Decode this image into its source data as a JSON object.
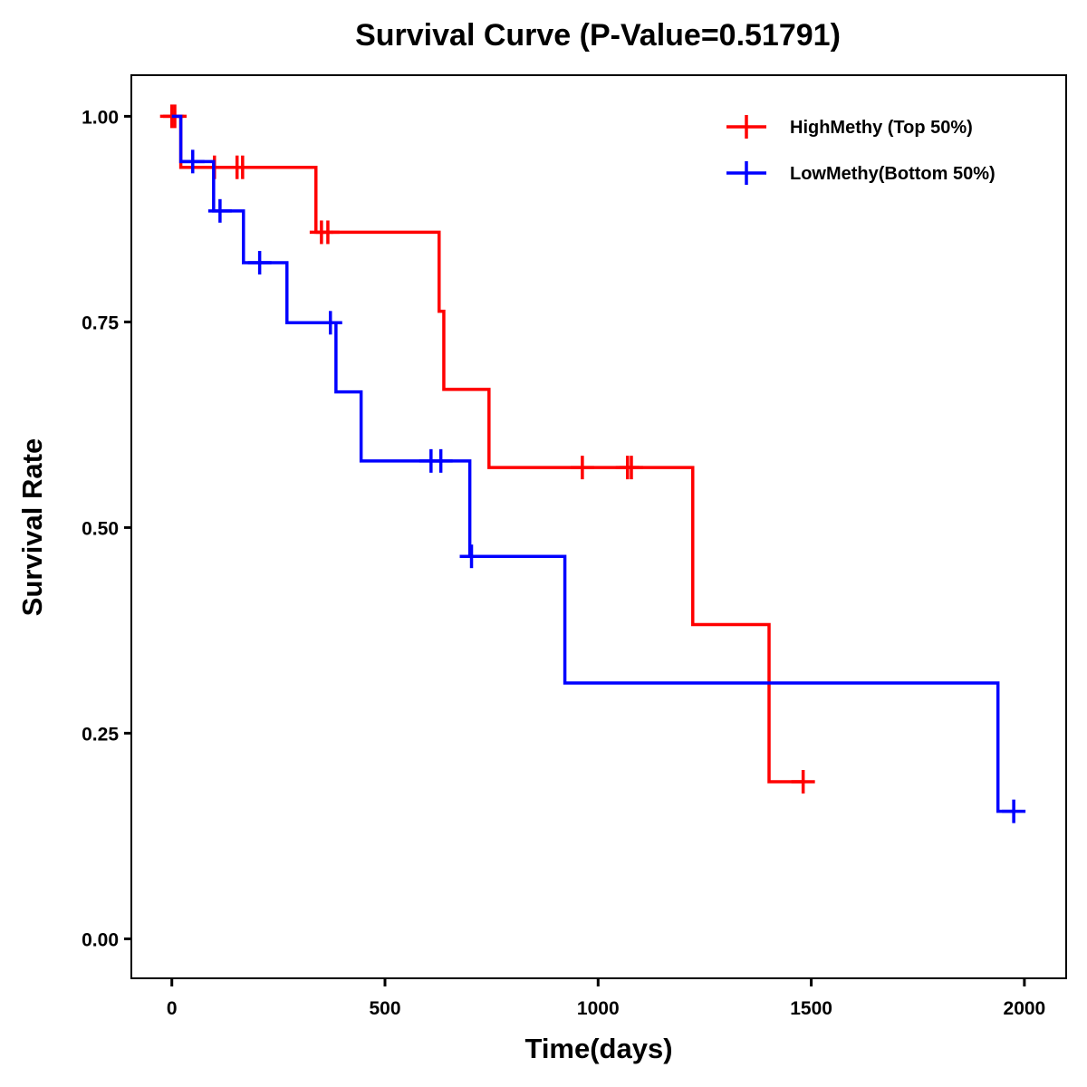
{
  "chart_data": {
    "type": "line",
    "subtype": "kaplan-meier-step",
    "title": "Survival Curve (P-Value=0.51791)",
    "xlabel": "Time(days)",
    "ylabel": "Survival Rate",
    "xlim": [
      -95,
      2098
    ],
    "ylim": [
      -0.048,
      1.05
    ],
    "x_ticks": [
      0,
      500,
      1000,
      1500,
      2000
    ],
    "x_tick_labels": [
      "0",
      "500",
      "1000",
      "1500",
      "2000"
    ],
    "y_ticks": [
      0,
      0.25,
      0.5,
      0.75,
      1.0
    ],
    "y_tick_labels": [
      "0.00",
      "0.25",
      "0.50",
      "0.75",
      "1.00"
    ],
    "grid": false,
    "legend_position": "top-right",
    "series": [
      {
        "name": "HighMethy (Top 50%)",
        "color": "#ff0000",
        "steps": [
          {
            "t": 0,
            "s": 1.0
          },
          {
            "t": 21,
            "s": 0.938
          },
          {
            "t": 338,
            "s": 0.859
          },
          {
            "t": 627,
            "s": 0.763
          },
          {
            "t": 638,
            "s": 0.668
          },
          {
            "t": 744,
            "s": 0.573
          },
          {
            "t": 1222,
            "s": 0.382
          },
          {
            "t": 1401,
            "s": 0.191
          }
        ],
        "end_t": 1481,
        "censored": [
          {
            "t": 0,
            "s": 1.0
          },
          {
            "t": 7,
            "s": 1.0
          },
          {
            "t": 100,
            "s": 0.938
          },
          {
            "t": 153,
            "s": 0.938
          },
          {
            "t": 166,
            "s": 0.938
          },
          {
            "t": 351,
            "s": 0.859
          },
          {
            "t": 366,
            "s": 0.859
          },
          {
            "t": 963,
            "s": 0.573
          },
          {
            "t": 1069,
            "s": 0.573
          },
          {
            "t": 1078,
            "s": 0.573
          },
          {
            "t": 1481,
            "s": 0.191
          }
        ]
      },
      {
        "name": "LowMethy(Bottom 50%)",
        "color": "#0000ff",
        "steps": [
          {
            "t": 0,
            "s": 1.0
          },
          {
            "t": 21,
            "s": 0.945
          },
          {
            "t": 98,
            "s": 0.885
          },
          {
            "t": 168,
            "s": 0.822
          },
          {
            "t": 270,
            "s": 0.749
          },
          {
            "t": 385,
            "s": 0.665
          },
          {
            "t": 444,
            "s": 0.581
          },
          {
            "t": 699,
            "s": 0.465
          },
          {
            "t": 922,
            "s": 0.311
          },
          {
            "t": 1938,
            "s": 0.155
          }
        ],
        "end_t": 1975,
        "censored": [
          {
            "t": 49,
            "s": 0.945
          },
          {
            "t": 113,
            "s": 0.885
          },
          {
            "t": 206,
            "s": 0.822
          },
          {
            "t": 372,
            "s": 0.749
          },
          {
            "t": 608,
            "s": 0.581
          },
          {
            "t": 631,
            "s": 0.581
          },
          {
            "t": 703,
            "s": 0.465
          },
          {
            "t": 1975,
            "s": 0.155
          }
        ]
      }
    ]
  }
}
